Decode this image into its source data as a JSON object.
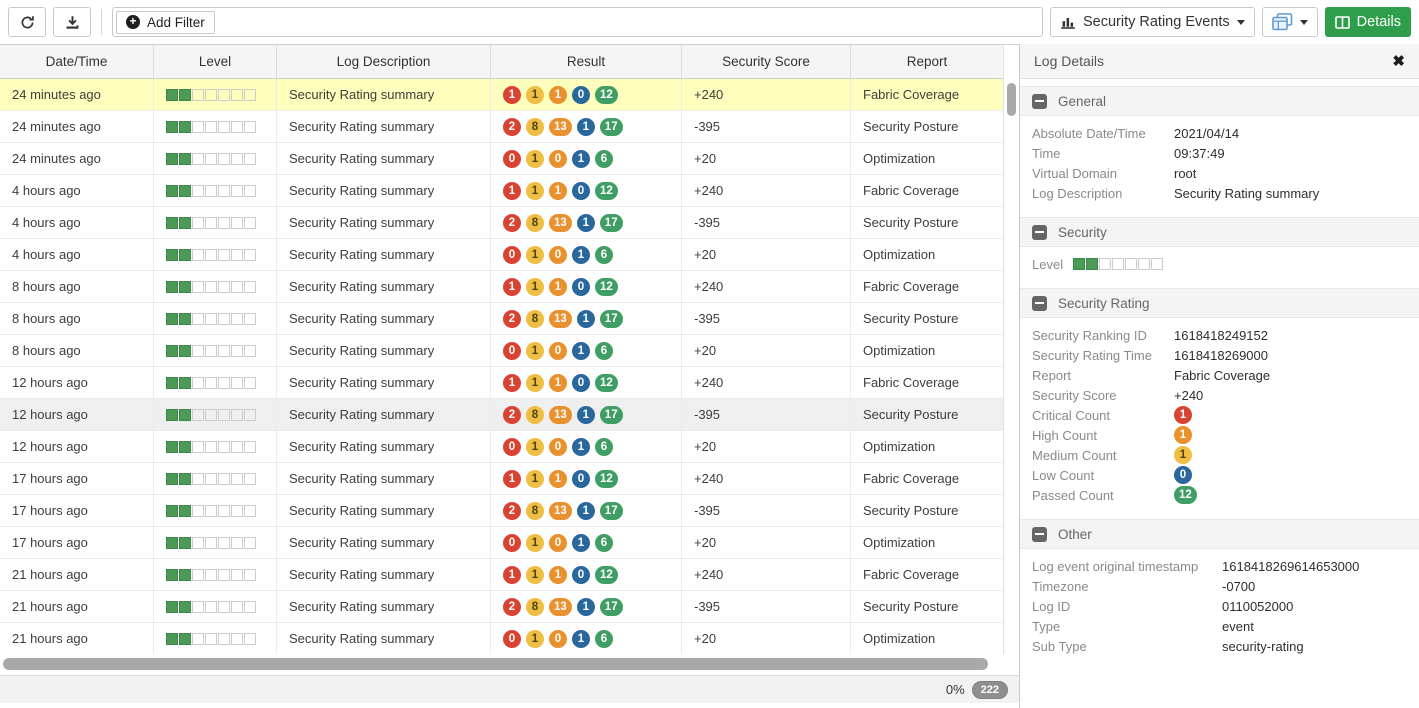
{
  "toolbar": {
    "add_filter_label": "Add Filter",
    "view_select_label": "Security Rating Events",
    "details_button_label": "Details"
  },
  "table": {
    "columns": [
      "Date/Time",
      "Level",
      "Log Description",
      "Result",
      "Security Score",
      "Report"
    ],
    "result_color_order": [
      "critical",
      "medium",
      "high",
      "low",
      "passed"
    ],
    "level_segments_total": 7,
    "rows": [
      {
        "datetime": "24 minutes ago",
        "level": 2,
        "description": "Security Rating summary",
        "result": [
          1,
          1,
          1,
          0,
          12
        ],
        "score": "+240",
        "report": "Fabric Coverage",
        "state": "selected"
      },
      {
        "datetime": "24 minutes ago",
        "level": 2,
        "description": "Security Rating summary",
        "result": [
          2,
          8,
          13,
          1,
          17
        ],
        "score": "-395",
        "report": "Security Posture",
        "state": ""
      },
      {
        "datetime": "24 minutes ago",
        "level": 2,
        "description": "Security Rating summary",
        "result": [
          0,
          1,
          0,
          1,
          6
        ],
        "score": "+20",
        "report": "Optimization",
        "state": ""
      },
      {
        "datetime": "4 hours ago",
        "level": 2,
        "description": "Security Rating summary",
        "result": [
          1,
          1,
          1,
          0,
          12
        ],
        "score": "+240",
        "report": "Fabric Coverage",
        "state": ""
      },
      {
        "datetime": "4 hours ago",
        "level": 2,
        "description": "Security Rating summary",
        "result": [
          2,
          8,
          13,
          1,
          17
        ],
        "score": "-395",
        "report": "Security Posture",
        "state": ""
      },
      {
        "datetime": "4 hours ago",
        "level": 2,
        "description": "Security Rating summary",
        "result": [
          0,
          1,
          0,
          1,
          6
        ],
        "score": "+20",
        "report": "Optimization",
        "state": ""
      },
      {
        "datetime": "8 hours ago",
        "level": 2,
        "description": "Security Rating summary",
        "result": [
          1,
          1,
          1,
          0,
          12
        ],
        "score": "+240",
        "report": "Fabric Coverage",
        "state": ""
      },
      {
        "datetime": "8 hours ago",
        "level": 2,
        "description": "Security Rating summary",
        "result": [
          2,
          8,
          13,
          1,
          17
        ],
        "score": "-395",
        "report": "Security Posture",
        "state": ""
      },
      {
        "datetime": "8 hours ago",
        "level": 2,
        "description": "Security Rating summary",
        "result": [
          0,
          1,
          0,
          1,
          6
        ],
        "score": "+20",
        "report": "Optimization",
        "state": ""
      },
      {
        "datetime": "12 hours ago",
        "level": 2,
        "description": "Security Rating summary",
        "result": [
          1,
          1,
          1,
          0,
          12
        ],
        "score": "+240",
        "report": "Fabric Coverage",
        "state": ""
      },
      {
        "datetime": "12 hours ago",
        "level": 2,
        "description": "Security Rating summary",
        "result": [
          2,
          8,
          13,
          1,
          17
        ],
        "score": "-395",
        "report": "Security Posture",
        "state": "hover"
      },
      {
        "datetime": "12 hours ago",
        "level": 2,
        "description": "Security Rating summary",
        "result": [
          0,
          1,
          0,
          1,
          6
        ],
        "score": "+20",
        "report": "Optimization",
        "state": ""
      },
      {
        "datetime": "17 hours ago",
        "level": 2,
        "description": "Security Rating summary",
        "result": [
          1,
          1,
          1,
          0,
          12
        ],
        "score": "+240",
        "report": "Fabric Coverage",
        "state": ""
      },
      {
        "datetime": "17 hours ago",
        "level": 2,
        "description": "Security Rating summary",
        "result": [
          2,
          8,
          13,
          1,
          17
        ],
        "score": "-395",
        "report": "Security Posture",
        "state": ""
      },
      {
        "datetime": "17 hours ago",
        "level": 2,
        "description": "Security Rating summary",
        "result": [
          0,
          1,
          0,
          1,
          6
        ],
        "score": "+20",
        "report": "Optimization",
        "state": ""
      },
      {
        "datetime": "21 hours ago",
        "level": 2,
        "description": "Security Rating summary",
        "result": [
          1,
          1,
          1,
          0,
          12
        ],
        "score": "+240",
        "report": "Fabric Coverage",
        "state": ""
      },
      {
        "datetime": "21 hours ago",
        "level": 2,
        "description": "Security Rating summary",
        "result": [
          2,
          8,
          13,
          1,
          17
        ],
        "score": "-395",
        "report": "Security Posture",
        "state": ""
      },
      {
        "datetime": "21 hours ago",
        "level": 2,
        "description": "Security Rating summary",
        "result": [
          0,
          1,
          0,
          1,
          6
        ],
        "score": "+20",
        "report": "Optimization",
        "state": ""
      }
    ]
  },
  "footer": {
    "scroll_percent": "0%",
    "total_count": "222"
  },
  "details_panel": {
    "title": "Log Details",
    "sections": [
      {
        "title": "General",
        "label_width": 142,
        "rows": [
          {
            "label": "Absolute Date/Time",
            "value": "2021/04/14"
          },
          {
            "label": "Time",
            "value": "09:37:49"
          },
          {
            "label": "Virtual Domain",
            "value": "root"
          },
          {
            "label": "Log Description",
            "value": "Security Rating summary"
          }
        ]
      },
      {
        "title": "Security",
        "label_width": 142,
        "rows": [
          {
            "label": "Level",
            "type": "level",
            "filled": 2,
            "total": 7
          }
        ]
      },
      {
        "title": "Security Rating",
        "label_width": 142,
        "rows": [
          {
            "label": "Security Ranking ID",
            "value": "1618418249152"
          },
          {
            "label": "Security Rating Time",
            "value": "1618418269000"
          },
          {
            "label": "Report",
            "value": "Fabric Coverage"
          },
          {
            "label": "Security Score",
            "value": "+240"
          },
          {
            "label": "Critical Count",
            "badge": {
              "value": "1",
              "color": "critical"
            }
          },
          {
            "label": "High Count",
            "badge": {
              "value": "1",
              "color": "high"
            }
          },
          {
            "label": "Medium Count",
            "badge": {
              "value": "1",
              "color": "medium"
            }
          },
          {
            "label": "Low Count",
            "badge": {
              "value": "0",
              "color": "low"
            }
          },
          {
            "label": "Passed Count",
            "badge": {
              "value": "12",
              "color": "passed"
            }
          }
        ]
      },
      {
        "title": "Other",
        "label_width": 190,
        "rows": [
          {
            "label": "Log event original timestamp",
            "value": "1618418269614653000"
          },
          {
            "label": "Timezone",
            "value": "-0700"
          },
          {
            "label": "Log ID",
            "value": "0110052000"
          },
          {
            "label": "Type",
            "value": "event"
          },
          {
            "label": "Sub Type",
            "value": "security-rating"
          }
        ]
      }
    ]
  },
  "colors": {
    "critical": "#d84431",
    "high": "#e8912d",
    "medium": "#efbe42",
    "low": "#2a679d",
    "passed": "#3f9e63",
    "accent_green": "#2f9e4c",
    "selected_row": "#ffffbd",
    "level_filled": "#4b9b57"
  }
}
